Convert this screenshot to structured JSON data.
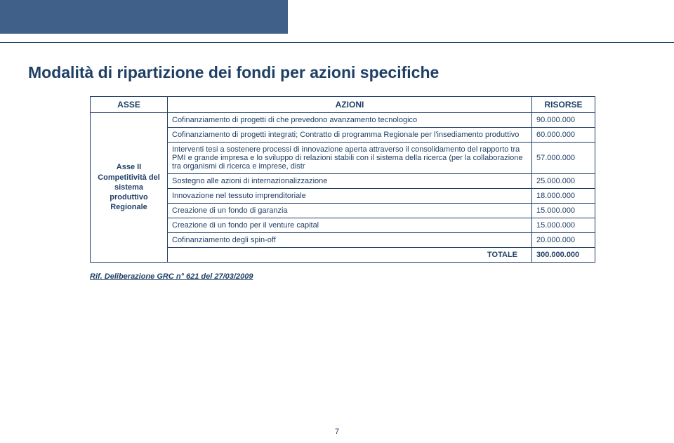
{
  "title": "Modalità di ripartizione dei fondi per azioni specifiche",
  "table": {
    "headers": {
      "asse": "ASSE",
      "azioni": "AZIONI",
      "risorse": "RISORSE"
    },
    "asse_label": "Asse II\nCompetitività del sistema produttivo Regionale",
    "rows": [
      {
        "azioni": "Cofinanziamento di progetti di che prevedono avanzamento tecnologico",
        "risorse": "90.000.000"
      },
      {
        "azioni": "Cofinanziamento di progetti integrati; Contratto  di programma Regionale per l'insediamento produttivo",
        "risorse": "60.000.000"
      },
      {
        "azioni": "Interventi tesi a sostenere processi di innovazione  aperta attraverso il consolidamento del rapporto tra PMI e grande impresa e lo sviluppo di relazioni stabili con il sistema della ricerca (per la collaborazione tra organismi di ricerca e imprese, distr",
        "risorse": "57.000.000"
      },
      {
        "azioni": "Sostegno alle azioni di internazionalizzazione",
        "risorse": "25.000.000"
      },
      {
        "azioni": "Innovazione nel tessuto imprenditoriale",
        "risorse": "18.000.000"
      },
      {
        "azioni": "Creazione di un fondo di garanzia",
        "risorse": "15.000.000"
      },
      {
        "azioni": "Creazione di un fondo per il venture capital",
        "risorse": "15.000.000"
      },
      {
        "azioni": "Cofinanziamento degli spin-off",
        "risorse": "20.000.000"
      }
    ],
    "total_label": "TOTALE",
    "total_value": "300.000.000"
  },
  "reference": "Rif. Deliberazione GRC n° 621 del 27/03/2009",
  "page_number": "7",
  "colors": {
    "brand_blue": "#406089",
    "text_blue": "#1f3f66",
    "white": "#ffffff"
  }
}
